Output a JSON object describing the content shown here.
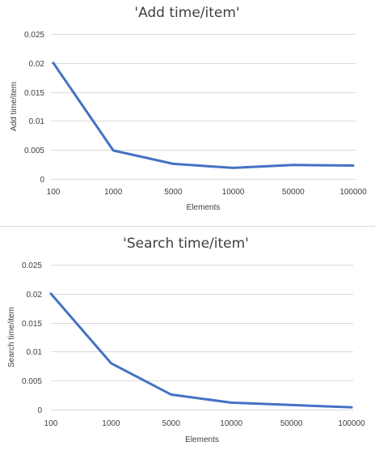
{
  "chart_data": [
    {
      "type": "line",
      "title": "'Add time/item'",
      "xlabel": "Elements",
      "ylabel": "Add time/item",
      "categories": [
        "100",
        "1000",
        "5000",
        "10000",
        "50000",
        "100000"
      ],
      "yticks": [
        "0",
        "0.005",
        "0.01",
        "0.015",
        "0.02",
        "0.025"
      ],
      "ylim": [
        0,
        0.025
      ],
      "grid": true,
      "series": [
        {
          "values": [
            0.02,
            0.0049,
            0.0026,
            0.0019,
            0.0024,
            0.0023
          ],
          "color": "#4472c4"
        }
      ]
    },
    {
      "type": "line",
      "title": "'Search time/item'",
      "xlabel": "Elements",
      "ylabel": "Search time/item",
      "categories": [
        "100",
        "1000",
        "5000",
        "10000",
        "50000",
        "100000"
      ],
      "yticks": [
        "0",
        "0.005",
        "0.01",
        "0.015",
        "0.02",
        "0.025"
      ],
      "ylim": [
        0,
        0.025
      ],
      "grid": true,
      "series": [
        {
          "values": [
            0.02,
            0.008,
            0.0026,
            0.0012,
            0.0008,
            0.0004
          ],
          "color": "#4472c4"
        }
      ]
    }
  ]
}
